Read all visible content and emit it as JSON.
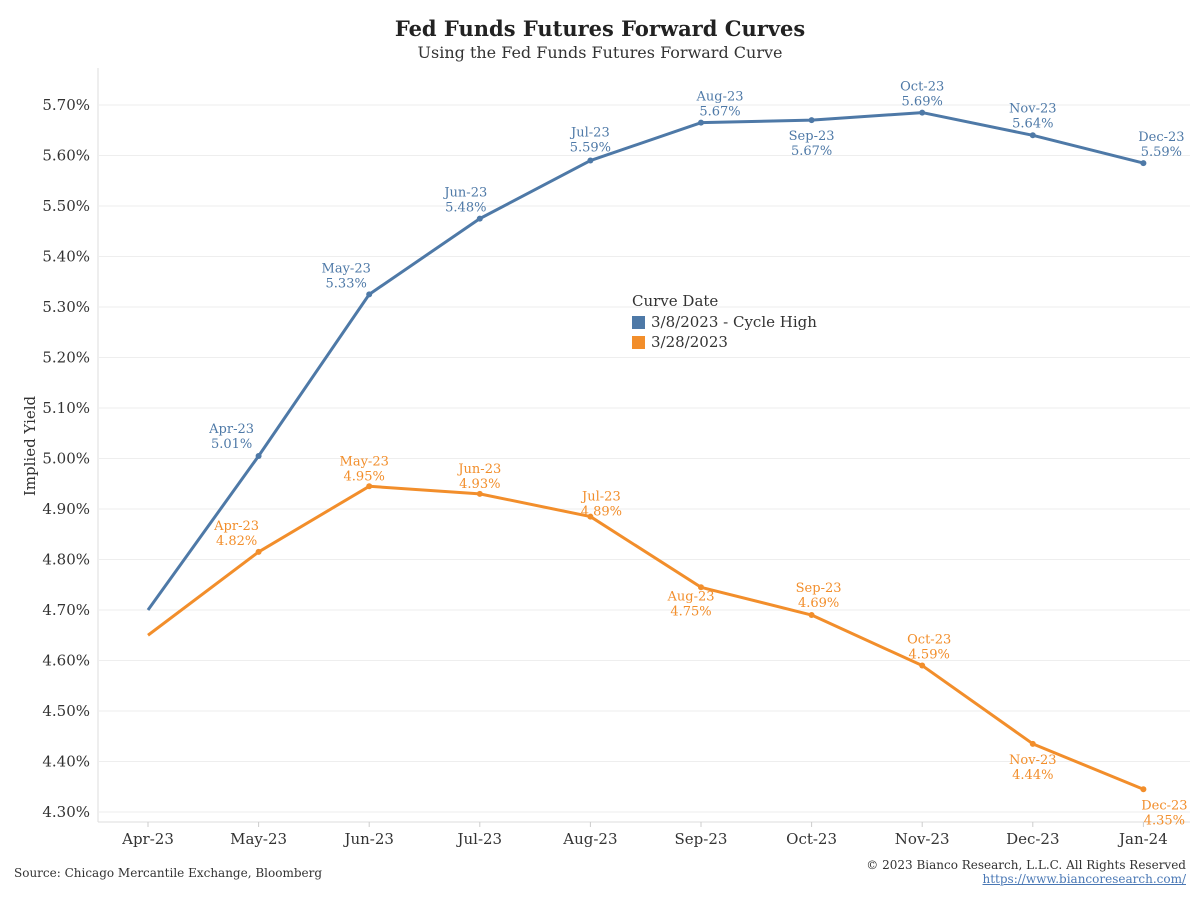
{
  "title": "Fed Funds Futures Forward Curves",
  "subtitle": "Using the Fed Funds Futures Forward Curve",
  "footer": {
    "source": "Source: Chicago Mercantile Exchange, Bloomberg",
    "copyright": "© 2023 Bianco Research, L.L.C. All Rights Reserved",
    "url": "https://www.biancoresearch.com/"
  },
  "chart_data": {
    "type": "line",
    "ylabel": "Implied Yield",
    "xlabel": "",
    "categories": [
      "Apr-23",
      "May-23",
      "Jun-23",
      "Jul-23",
      "Aug-23",
      "Sep-23",
      "Oct-23",
      "Nov-23",
      "Dec-23",
      "Jan-24"
    ],
    "yticks": [
      "5.70%",
      "5.60%",
      "5.50%",
      "5.40%",
      "5.30%",
      "5.20%",
      "5.10%",
      "5.00%",
      "4.90%",
      "4.80%",
      "4.70%",
      "4.60%",
      "4.50%",
      "4.40%",
      "4.30%"
    ],
    "ytick_values": [
      5.7,
      5.6,
      5.5,
      5.4,
      5.3,
      5.2,
      5.1,
      5.0,
      4.9,
      4.8,
      4.7,
      4.6,
      4.5,
      4.4,
      4.3
    ],
    "ylim": [
      4.28,
      5.76
    ],
    "grid": true,
    "legend": {
      "title": "Curve Date",
      "placement": "center"
    },
    "series": [
      {
        "name": "3/8/2023 - Cycle High",
        "color": "#4e79a7",
        "values": [
          4.7,
          5.005,
          5.325,
          5.475,
          5.59,
          5.665,
          5.67,
          5.685,
          5.64,
          5.585
        ],
        "labels": [
          null,
          {
            "month": "Apr-23",
            "value": "5.01%"
          },
          {
            "month": "May-23",
            "value": "5.33%"
          },
          {
            "month": "Jun-23",
            "value": "5.48%"
          },
          {
            "month": "Jul-23",
            "value": "5.59%"
          },
          {
            "month": "Aug-23",
            "value": "5.67%"
          },
          {
            "month": "Sep-23",
            "value": "5.67%"
          },
          {
            "month": "Oct-23",
            "value": "5.69%"
          },
          {
            "month": "Nov-23",
            "value": "5.64%"
          },
          {
            "month": "Dec-23",
            "value": "5.59%"
          }
        ]
      },
      {
        "name": "3/28/2023",
        "color": "#f28e2b",
        "values": [
          4.65,
          4.815,
          4.945,
          4.93,
          4.885,
          4.745,
          4.69,
          4.59,
          4.435,
          4.345
        ],
        "labels": [
          null,
          {
            "month": "Apr-23",
            "value": "4.82%"
          },
          {
            "month": "May-23",
            "value": "4.95%"
          },
          {
            "month": "Jun-23",
            "value": "4.93%"
          },
          {
            "month": "Jul-23",
            "value": "4.89%"
          },
          {
            "month": "Aug-23",
            "value": "4.75%"
          },
          {
            "month": "Sep-23",
            "value": "4.69%"
          },
          {
            "month": "Oct-23",
            "value": "4.59%"
          },
          {
            "month": "Nov-23",
            "value": "4.44%"
          },
          {
            "month": "Dec-23",
            "value": "4.35%"
          }
        ]
      }
    ]
  }
}
